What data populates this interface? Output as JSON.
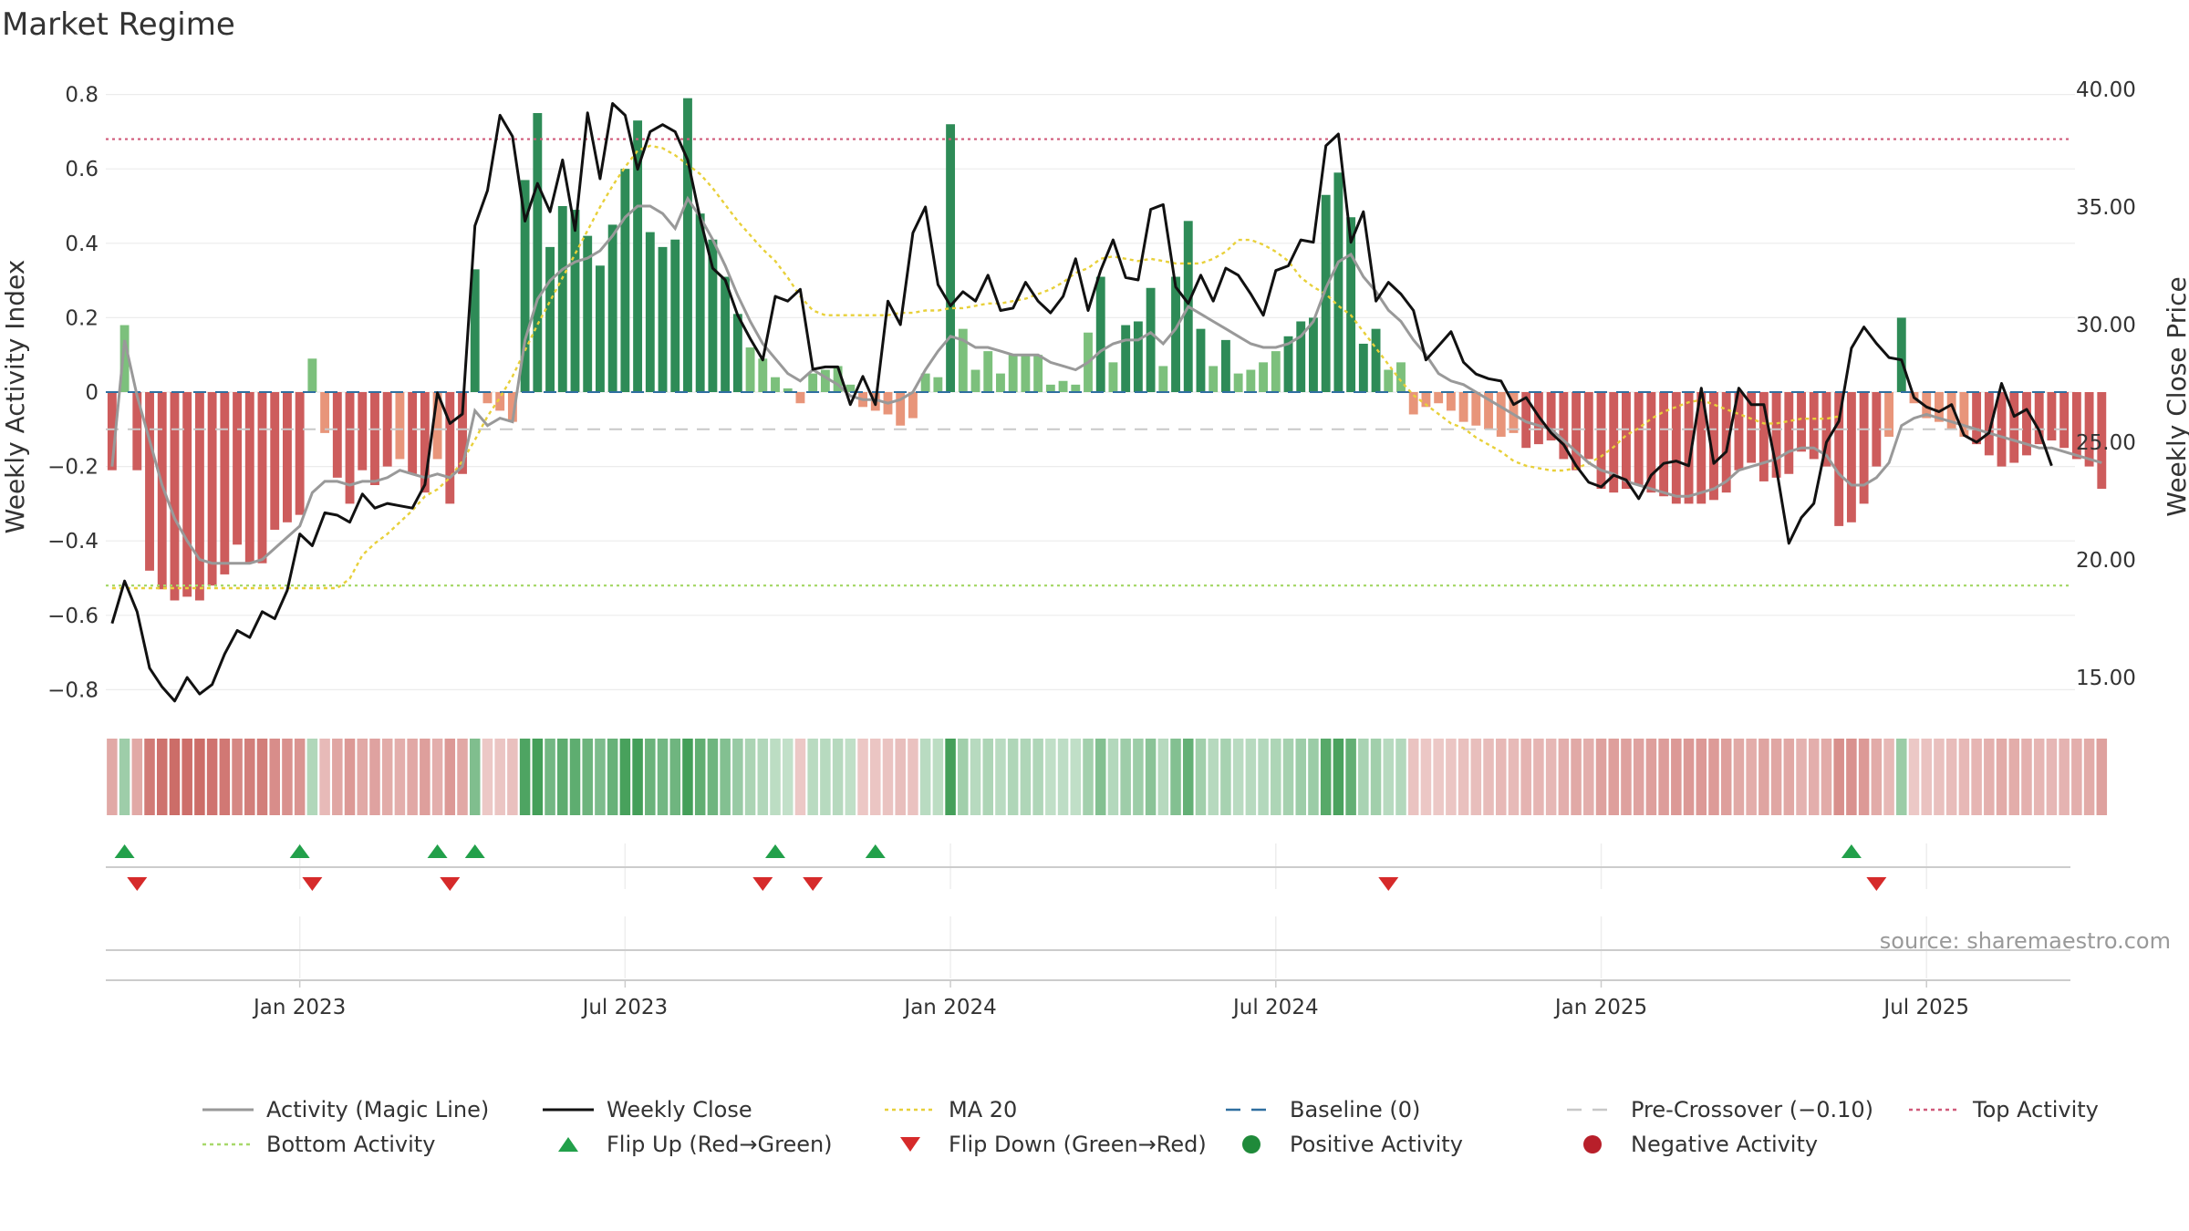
{
  "chart_data": {
    "type": "bar",
    "title": "Market Regime",
    "ylabel_left": "Weekly Activity Index",
    "ylabel_right": "Weekly Close Price",
    "yticks_left": [
      "0.8",
      "0.6",
      "0.4",
      "0.2",
      "0",
      "−0.2",
      "−0.4",
      "−0.6",
      "−0.8"
    ],
    "yticks_left_values": [
      0.8,
      0.6,
      0.4,
      0.2,
      0,
      -0.2,
      -0.4,
      -0.6,
      -0.8
    ],
    "yticks_right": [
      "40.00",
      "35.00",
      "30.00",
      "25.00",
      "20.00",
      "15.00"
    ],
    "yticks_right_values": [
      40,
      35,
      30,
      25,
      20,
      15
    ],
    "ylim_left": [
      -0.85,
      0.8
    ],
    "ylim_right": [
      14,
      40.4
    ],
    "xticks": [
      "Jan 2023",
      "Jul 2023",
      "Jan 2024",
      "Jul 2024",
      "Jan 2025",
      "Jul 2025"
    ],
    "xticks_week_index": [
      15,
      41,
      67,
      93,
      119,
      145
    ],
    "n_weeks": 157,
    "thresholds": {
      "top": 0.68,
      "bottom": -0.52,
      "baseline": 0,
      "pre_crossover": -0.1
    },
    "activity": [
      -0.21,
      0.18,
      -0.21,
      -0.48,
      -0.53,
      -0.56,
      -0.55,
      -0.56,
      -0.52,
      -0.49,
      -0.41,
      -0.46,
      -0.46,
      -0.37,
      -0.35,
      -0.33,
      0.09,
      -0.11,
      -0.23,
      -0.3,
      -0.21,
      -0.25,
      -0.2,
      -0.18,
      -0.22,
      -0.27,
      -0.18,
      -0.3,
      -0.22,
      0.33,
      -0.03,
      -0.05,
      -0.08,
      0.57,
      0.75,
      0.39,
      0.5,
      0.49,
      0.42,
      0.34,
      0.45,
      0.6,
      0.73,
      0.43,
      0.39,
      0.41,
      0.79,
      0.48,
      0.41,
      0.31,
      0.21,
      0.12,
      0.09,
      0.04,
      0.01,
      -0.03,
      0.05,
      0.06,
      0.07,
      0.02,
      -0.04,
      -0.05,
      -0.06,
      -0.09,
      -0.07,
      0.05,
      0.04,
      0.72,
      0.17,
      0.06,
      0.11,
      0.05,
      0.1,
      0.1,
      0.1,
      0.02,
      0.03,
      0.02,
      0.16,
      0.31,
      0.08,
      0.18,
      0.19,
      0.28,
      0.07,
      0.31,
      0.46,
      0.17,
      0.07,
      0.14,
      0.05,
      0.06,
      0.08,
      0.11,
      0.15,
      0.19,
      0.2,
      0.53,
      0.59,
      0.47,
      0.13,
      0.17,
      0.06,
      0.08,
      -0.06,
      -0.04,
      -0.03,
      -0.05,
      -0.08,
      -0.09,
      -0.1,
      -0.12,
      -0.11,
      -0.15,
      -0.14,
      -0.13,
      -0.18,
      -0.21,
      -0.18,
      -0.26,
      -0.27,
      -0.26,
      -0.25,
      -0.27,
      -0.28,
      -0.3,
      -0.3,
      -0.3,
      -0.29,
      -0.27,
      -0.21,
      -0.19,
      -0.24,
      -0.23,
      -0.22,
      -0.16,
      -0.18,
      -0.2,
      -0.36,
      -0.35,
      -0.3,
      -0.2,
      -0.12,
      0.2,
      -0.03,
      -0.07,
      -0.08,
      -0.1,
      -0.12,
      -0.14,
      -0.17,
      -0.2,
      -0.19,
      -0.17,
      -0.14,
      -0.13,
      -0.15,
      -0.18,
      -0.2,
      -0.26
    ],
    "magic_line": [
      -0.2,
      0.14,
      -0.01,
      -0.13,
      -0.25,
      -0.34,
      -0.4,
      -0.45,
      -0.46,
      -0.46,
      -0.46,
      -0.46,
      -0.45,
      -0.42,
      -0.39,
      -0.36,
      -0.27,
      -0.24,
      -0.24,
      -0.25,
      -0.24,
      -0.24,
      -0.23,
      -0.21,
      -0.22,
      -0.23,
      -0.22,
      -0.23,
      -0.2,
      -0.05,
      -0.09,
      -0.07,
      -0.08,
      0.14,
      0.25,
      0.3,
      0.33,
      0.35,
      0.36,
      0.38,
      0.42,
      0.47,
      0.5,
      0.5,
      0.48,
      0.44,
      0.52,
      0.47,
      0.41,
      0.34,
      0.26,
      0.19,
      0.13,
      0.09,
      0.05,
      0.03,
      0.06,
      0.04,
      0.02,
      -0.01,
      -0.02,
      -0.02,
      -0.03,
      -0.02,
      0.0,
      0.06,
      0.11,
      0.15,
      0.14,
      0.12,
      0.12,
      0.11,
      0.1,
      0.1,
      0.1,
      0.08,
      0.07,
      0.06,
      0.08,
      0.11,
      0.13,
      0.14,
      0.14,
      0.16,
      0.13,
      0.17,
      0.23,
      0.21,
      0.19,
      0.17,
      0.15,
      0.13,
      0.12,
      0.12,
      0.13,
      0.15,
      0.19,
      0.28,
      0.35,
      0.37,
      0.31,
      0.27,
      0.22,
      0.19,
      0.14,
      0.1,
      0.05,
      0.03,
      0.02,
      0.0,
      -0.02,
      -0.04,
      -0.06,
      -0.08,
      -0.09,
      -0.1,
      -0.13,
      -0.16,
      -0.19,
      -0.21,
      -0.22,
      -0.24,
      -0.25,
      -0.26,
      -0.27,
      -0.28,
      -0.28,
      -0.27,
      -0.26,
      -0.24,
      -0.21,
      -0.2,
      -0.19,
      -0.18,
      -0.16,
      -0.15,
      -0.15,
      -0.17,
      -0.22,
      -0.25,
      -0.25,
      -0.23,
      -0.19,
      -0.09,
      -0.07,
      -0.06,
      -0.07,
      -0.08,
      -0.09,
      -0.1,
      -0.11,
      -0.12,
      -0.13,
      -0.14,
      -0.15,
      -0.15,
      -0.16,
      -0.17,
      -0.18,
      -0.19
    ],
    "weekly_close": [
      17.3,
      19.1,
      17.8,
      15.4,
      14.6,
      14.0,
      15.0,
      14.3,
      14.7,
      16.0,
      17.0,
      16.7,
      17.8,
      17.5,
      18.7,
      21.1,
      20.6,
      22.0,
      21.9,
      21.6,
      22.8,
      22.2,
      22.4,
      22.3,
      22.2,
      23.2,
      27.1,
      25.8,
      26.2,
      34.2,
      35.7,
      38.9,
      38.0,
      34.4,
      36.0,
      34.8,
      37.0,
      34.0,
      39.0,
      36.2,
      39.4,
      38.9,
      36.6,
      38.2,
      38.5,
      38.2,
      37.0,
      34.5,
      32.4,
      31.9,
      30.4,
      29.4,
      28.5,
      31.2,
      31.0,
      31.5,
      28.1,
      28.2,
      28.2,
      26.6,
      27.8,
      26.6,
      31.0,
      30.0,
      33.9,
      35.0,
      31.7,
      30.8,
      31.4,
      31.0,
      32.1,
      30.6,
      30.7,
      31.8,
      31.0,
      30.5,
      31.2,
      32.8,
      30.6,
      32.3,
      33.6,
      32.0,
      31.9,
      34.9,
      35.1,
      31.6,
      30.9,
      32.1,
      31.0,
      32.4,
      32.1,
      31.3,
      30.4,
      32.3,
      32.5,
      33.6,
      33.5,
      37.6,
      38.1,
      33.5,
      34.8,
      31.0,
      31.8,
      31.3,
      30.6,
      28.5,
      29.1,
      29.7,
      28.4,
      27.9,
      27.7,
      27.6,
      26.6,
      26.9,
      26.1,
      25.4,
      24.9,
      24.0,
      23.3,
      23.1,
      23.6,
      23.4,
      22.6,
      23.6,
      24.1,
      24.2,
      24.0,
      27.3,
      24.1,
      24.6,
      27.3,
      26.6,
      26.6,
      23.9,
      20.7,
      21.8,
      22.4,
      25.0,
      25.9,
      29.0,
      29.9,
      29.2,
      28.6,
      28.5,
      26.9,
      26.5,
      26.3,
      26.6,
      25.3,
      25.0,
      25.4,
      27.5,
      26.1,
      26.4,
      25.5,
      24.0
    ],
    "ma20": [
      18.8,
      18.8,
      18.8,
      18.8,
      18.8,
      18.8,
      18.8,
      18.8,
      18.8,
      18.8,
      18.8,
      18.8,
      18.8,
      18.8,
      18.8,
      18.8,
      18.8,
      18.8,
      18.8,
      19.2,
      20.2,
      20.7,
      21.1,
      21.6,
      22.1,
      22.7,
      23.0,
      23.5,
      24.2,
      25.1,
      26.1,
      26.9,
      27.8,
      28.9,
      30.0,
      31.0,
      32.0,
      33.0,
      34.0,
      35.0,
      35.9,
      36.7,
      37.4,
      37.6,
      37.5,
      37.2,
      36.8,
      36.4,
      35.8,
      35.1,
      34.4,
      33.8,
      33.2,
      32.7,
      32.0,
      31.2,
      30.6,
      30.4,
      30.4,
      30.4,
      30.4,
      30.4,
      30.4,
      30.5,
      30.5,
      30.6,
      30.6,
      30.7,
      30.7,
      30.8,
      30.9,
      30.9,
      31.0,
      31.1,
      31.3,
      31.5,
      31.8,
      32.2,
      32.4,
      32.8,
      32.9,
      32.8,
      32.7,
      32.8,
      32.7,
      32.6,
      32.6,
      32.6,
      32.8,
      33.1,
      33.6,
      33.6,
      33.4,
      33.1,
      32.7,
      32.0,
      31.6,
      31.3,
      30.8,
      30.4,
      29.7,
      29.0,
      28.3,
      27.6,
      27.0,
      26.6,
      26.2,
      25.8,
      25.6,
      25.2,
      24.9,
      24.6,
      24.2,
      24.0,
      23.9,
      23.8,
      23.8,
      23.9,
      24.1,
      24.4,
      24.8,
      25.3,
      25.6,
      26.0,
      26.3,
      26.5,
      26.7,
      26.8,
      26.6,
      26.4,
      26.2,
      26.0,
      25.8,
      25.8,
      25.9,
      26.0,
      26.0,
      26.0,
      26.1
    ],
    "flip_up_weeks": [
      1,
      15,
      26,
      29,
      53,
      61,
      139
    ],
    "flip_down_weeks": [
      2,
      16,
      27,
      52,
      56,
      102,
      141
    ],
    "legend": [
      {
        "label": "Activity (Magic Line)",
        "kind": "line",
        "color": "#999999"
      },
      {
        "label": "Weekly Close",
        "kind": "line",
        "color": "#111111"
      },
      {
        "label": "MA 20",
        "kind": "dotted",
        "color": "#e8d03a"
      },
      {
        "label": "Baseline (0)",
        "kind": "dashed",
        "color": "#2f6fa0"
      },
      {
        "label": "Pre-Crossover (−0.10)",
        "kind": "dashed",
        "color": "#c8c8c8"
      },
      {
        "label": "Top Activity",
        "kind": "dotted",
        "color": "#d05a7a"
      },
      {
        "label": "Bottom Activity",
        "kind": "dotted",
        "color": "#a7d86a"
      },
      {
        "label": "Flip Up (Red→Green)",
        "kind": "tri-up",
        "color": "#22a04a"
      },
      {
        "label": "Flip Down (Green→Red)",
        "kind": "tri-down",
        "color": "#d62a2a"
      },
      {
        "label": "Positive Activity",
        "kind": "dot",
        "color": "#1f8a3a"
      },
      {
        "label": "Negative Activity",
        "kind": "dot",
        "color": "#b81f2a"
      }
    ],
    "source_note": "source: sharemaestro.com"
  },
  "colors": {
    "green_strong": "#2e8b57",
    "green_light": "#7cc07c",
    "red_strong": "#cd5c5c",
    "red_light": "#e8957a",
    "top_line": "#d05a7a",
    "bottom_line": "#a7d86a",
    "ma20": "#e8d03a",
    "magic_line": "#999999",
    "close": "#111111",
    "baseline": "#2f6fa0",
    "pre_cross": "#c8c8c8"
  }
}
